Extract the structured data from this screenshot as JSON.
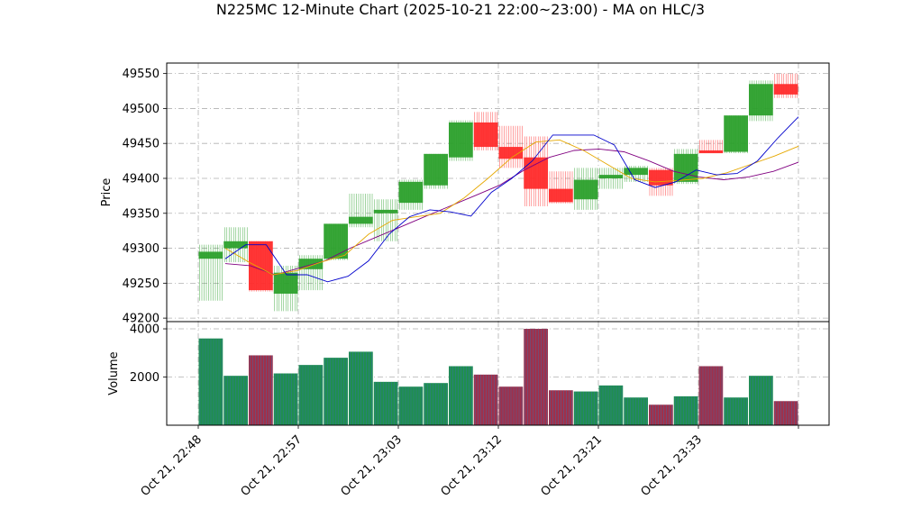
{
  "title": "N225MC 12-Minute Chart (2025-10-21 22:00~23:00) - MA on HLC/3",
  "chart_data": [
    {
      "type": "candlestick",
      "ylabel": "Price",
      "ylim": [
        49195,
        49565
      ],
      "yticks": [
        49200,
        49250,
        49300,
        49350,
        49400,
        49450,
        49500,
        49550
      ],
      "grid": true,
      "colors": {
        "up": "#2ca02c",
        "down": "#ff2b2b",
        "ma_fast": "#0000cc",
        "ma_mid": "#e6a800",
        "ma_slow": "#800080"
      },
      "candles": [
        {
          "open": 49285,
          "close": 49295,
          "high": 49305,
          "low": 49225
        },
        {
          "open": 49300,
          "close": 49310,
          "high": 49330,
          "low": 49280
        },
        {
          "open": 49310,
          "close": 49240,
          "high": 49310,
          "low": 49238
        },
        {
          "open": 49235,
          "close": 49265,
          "high": 49275,
          "low": 49210
        },
        {
          "open": 49270,
          "close": 49285,
          "high": 49290,
          "low": 49240
        },
        {
          "open": 49285,
          "close": 49335,
          "high": 49335,
          "low": 49283
        },
        {
          "open": 49335,
          "close": 49345,
          "high": 49378,
          "low": 49330
        },
        {
          "open": 49350,
          "close": 49355,
          "high": 49370,
          "low": 49310
        },
        {
          "open": 49365,
          "close": 49395,
          "high": 49398,
          "low": 49355
        },
        {
          "open": 49390,
          "close": 49435,
          "high": 49435,
          "low": 49385
        },
        {
          "open": 49430,
          "close": 49480,
          "high": 49483,
          "low": 49425
        },
        {
          "open": 49480,
          "close": 49445,
          "high": 49495,
          "low": 49440
        },
        {
          "open": 49445,
          "close": 49428,
          "high": 49475,
          "low": 49415
        },
        {
          "open": 49430,
          "close": 49385,
          "high": 49460,
          "low": 49360
        },
        {
          "open": 49385,
          "close": 49366,
          "high": 49410,
          "low": 49364
        },
        {
          "open": 49370,
          "close": 49398,
          "high": 49415,
          "low": 49355
        },
        {
          "open": 49400,
          "close": 49405,
          "high": 49415,
          "low": 49385
        },
        {
          "open": 49405,
          "close": 49415,
          "high": 49418,
          "low": 49395
        },
        {
          "open": 49412,
          "close": 49390,
          "high": 49415,
          "low": 49375
        },
        {
          "open": 49395,
          "close": 49435,
          "high": 49442,
          "low": 49392
        },
        {
          "open": 49440,
          "close": 49436,
          "high": 49455,
          "low": 49437
        },
        {
          "open": 49438,
          "close": 49490,
          "high": 49490,
          "low": 49436
        },
        {
          "open": 49490,
          "close": 49535,
          "high": 49540,
          "low": 49482
        },
        {
          "open": 49535,
          "close": 49520,
          "high": 49550,
          "low": 49515
        }
      ],
      "ma_fast": [
        49285,
        49305,
        49305,
        49262,
        49262,
        49252,
        49260,
        49282,
        49320,
        49345,
        49355,
        49352,
        49346,
        49380,
        49400,
        49425,
        49462,
        49462,
        49462,
        49448,
        49398,
        49387,
        49395,
        49412,
        49405,
        49407,
        49425,
        49458,
        49488
      ],
      "ma_mid": [
        49300,
        49280,
        49262,
        49268,
        49280,
        49290,
        49320,
        49340,
        49345,
        49350,
        49372,
        49400,
        49430,
        49452,
        49455,
        49440,
        49420,
        49400,
        49395,
        49397,
        49400,
        49408,
        49420,
        49432,
        49446
      ],
      "ma_slow": [
        49278,
        49275,
        49262,
        49272,
        49282,
        49300,
        49315,
        49330,
        49345,
        49360,
        49375,
        49390,
        49412,
        49430,
        49440,
        49442,
        49438,
        49425,
        49410,
        49402,
        49398,
        49402,
        49410,
        49423
      ]
    },
    {
      "type": "bar",
      "ylabel": "Volume",
      "ylim": [
        0,
        4300
      ],
      "yticks": [
        2000,
        4000
      ],
      "grid": true,
      "values": [
        3600,
        2050,
        2900,
        2150,
        2500,
        2800,
        3050,
        1800,
        1600,
        1750,
        2450,
        2100,
        1600,
        4000,
        1450,
        1400,
        1650,
        1150,
        850,
        1200,
        2450,
        1150,
        2050,
        1000
      ],
      "x_tick_labels": [
        "Oct 21, 22:48",
        "Oct 21, 22:57",
        "Oct 21, 23:03",
        "Oct 21, 23:12",
        "Oct 21, 23:21",
        "Oct 21, 23:33"
      ]
    }
  ]
}
